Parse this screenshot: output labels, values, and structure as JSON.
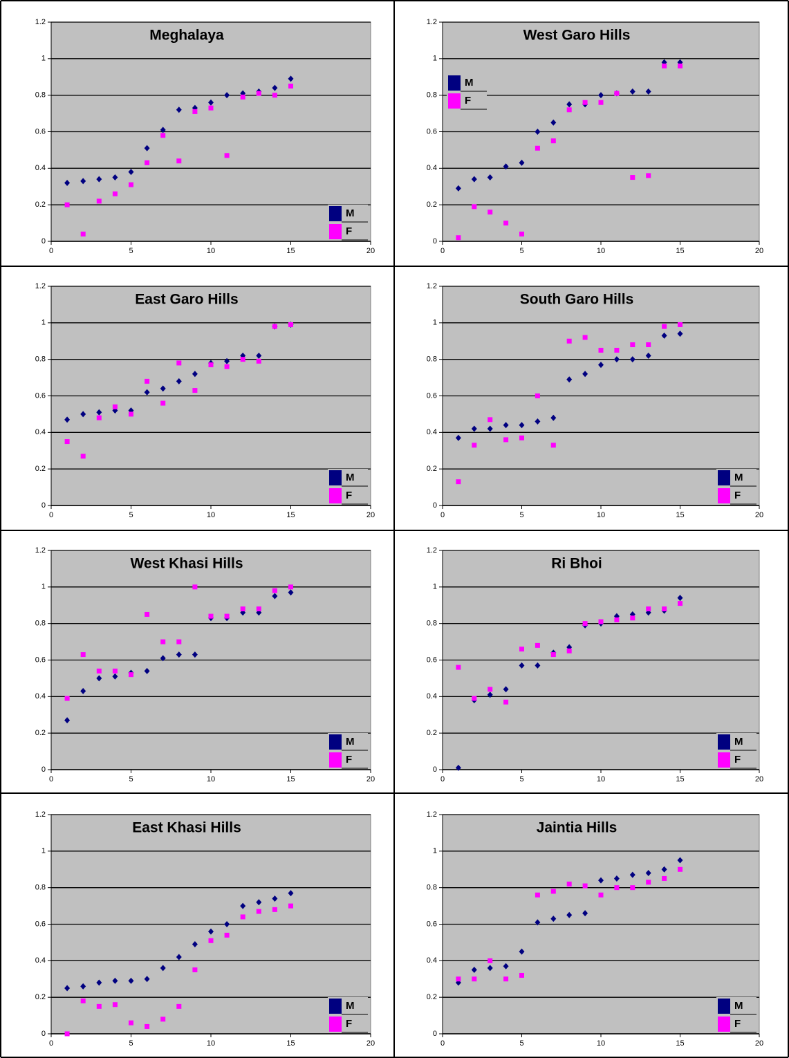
{
  "chart_data": [
    {
      "type": "scatter",
      "title": "Meghalaya",
      "x": [
        1,
        2,
        3,
        4,
        5,
        6,
        7,
        8,
        9,
        10,
        11,
        12,
        13,
        14,
        15
      ],
      "xlim": [
        0,
        20
      ],
      "xticks": [
        0,
        5,
        10,
        15,
        20
      ],
      "ylim": [
        0,
        1.2
      ],
      "yticks": [
        0,
        0.2,
        0.4,
        0.6,
        0.8,
        1,
        1.2
      ],
      "grid": true,
      "legend": "lower right",
      "series": [
        {
          "name": "M",
          "color": "#000080",
          "marker": "diamond",
          "values": [
            0.32,
            0.33,
            0.34,
            0.35,
            0.38,
            0.51,
            0.61,
            0.72,
            0.73,
            0.76,
            0.8,
            0.81,
            0.82,
            0.84,
            0.89
          ]
        },
        {
          "name": "F",
          "color": "#ff00ff",
          "marker": "square",
          "values": [
            0.2,
            0.04,
            0.22,
            0.26,
            0.31,
            0.43,
            0.58,
            0.44,
            0.71,
            0.73,
            0.47,
            0.79,
            0.81,
            0.8,
            0.85
          ]
        }
      ]
    },
    {
      "type": "scatter",
      "title": "West Garo Hills",
      "x": [
        1,
        2,
        3,
        4,
        5,
        6,
        7,
        8,
        9,
        10,
        11,
        12,
        13,
        14,
        15
      ],
      "xlim": [
        0,
        20
      ],
      "xticks": [
        0,
        5,
        10,
        15,
        20
      ],
      "ylim": [
        0,
        1.2
      ],
      "yticks": [
        0,
        0.2,
        0.4,
        0.6,
        0.8,
        1,
        1.2
      ],
      "grid": true,
      "legend": "upper left",
      "series": [
        {
          "name": "M",
          "color": "#000080",
          "marker": "diamond",
          "values": [
            0.29,
            0.34,
            0.35,
            0.41,
            0.43,
            0.6,
            0.65,
            0.75,
            0.75,
            0.8,
            0.81,
            0.82,
            0.82,
            0.98,
            0.98
          ]
        },
        {
          "name": "F",
          "color": "#ff00ff",
          "marker": "square",
          "values": [
            0.02,
            0.19,
            0.16,
            0.1,
            0.04,
            0.51,
            0.55,
            0.72,
            0.76,
            0.76,
            0.81,
            0.35,
            0.36,
            0.96,
            0.96
          ]
        }
      ]
    },
    {
      "type": "scatter",
      "title": "East Garo Hills",
      "x": [
        1,
        2,
        3,
        4,
        5,
        6,
        7,
        8,
        9,
        10,
        11,
        12,
        13,
        14,
        15
      ],
      "xlim": [
        0,
        20
      ],
      "xticks": [
        0,
        5,
        10,
        15,
        20
      ],
      "ylim": [
        0,
        1.2
      ],
      "yticks": [
        0,
        0.2,
        0.4,
        0.6,
        0.8,
        1,
        1.2
      ],
      "grid": true,
      "legend": "lower right",
      "series": [
        {
          "name": "M",
          "color": "#000080",
          "marker": "diamond",
          "values": [
            0.47,
            0.5,
            0.51,
            0.52,
            0.52,
            0.62,
            0.64,
            0.68,
            0.72,
            0.78,
            0.79,
            0.82,
            0.82,
            0.98,
            0.99
          ]
        },
        {
          "name": "F",
          "color": "#ff00ff",
          "marker": "square",
          "values": [
            0.35,
            0.27,
            0.48,
            0.54,
            0.5,
            0.68,
            0.56,
            0.78,
            0.63,
            0.77,
            0.76,
            0.8,
            0.79,
            0.98,
            0.99
          ]
        }
      ]
    },
    {
      "type": "scatter",
      "title": "South Garo Hills",
      "x": [
        1,
        2,
        3,
        4,
        5,
        6,
        7,
        8,
        9,
        10,
        11,
        12,
        13,
        14,
        15
      ],
      "xlim": [
        0,
        20
      ],
      "xticks": [
        0,
        5,
        10,
        15,
        20
      ],
      "ylim": [
        0,
        1.2
      ],
      "yticks": [
        0,
        0.2,
        0.4,
        0.6,
        0.8,
        1,
        1.2
      ],
      "grid": true,
      "legend": "lower right",
      "series": [
        {
          "name": "M",
          "color": "#000080",
          "marker": "diamond",
          "values": [
            0.37,
            0.42,
            0.42,
            0.44,
            0.44,
            0.46,
            0.48,
            0.69,
            0.72,
            0.77,
            0.8,
            0.8,
            0.82,
            0.93,
            0.94
          ]
        },
        {
          "name": "F",
          "color": "#ff00ff",
          "marker": "square",
          "values": [
            0.13,
            0.33,
            0.47,
            0.36,
            0.37,
            0.6,
            0.33,
            0.9,
            0.92,
            0.85,
            0.85,
            0.88,
            0.88,
            0.98,
            0.99
          ]
        }
      ]
    },
    {
      "type": "scatter",
      "title": "West Khasi Hills",
      "x": [
        1,
        2,
        3,
        4,
        5,
        6,
        7,
        8,
        9,
        10,
        11,
        12,
        13,
        14,
        15
      ],
      "xlim": [
        0,
        20
      ],
      "xticks": [
        0,
        5,
        10,
        15,
        20
      ],
      "ylim": [
        0,
        1.2
      ],
      "yticks": [
        0,
        0.2,
        0.4,
        0.6,
        0.8,
        1,
        1.2
      ],
      "grid": true,
      "legend": "lower right",
      "series": [
        {
          "name": "M",
          "color": "#000080",
          "marker": "diamond",
          "values": [
            0.27,
            0.43,
            0.5,
            0.51,
            0.53,
            0.54,
            0.61,
            0.63,
            0.63,
            0.83,
            0.83,
            0.86,
            0.86,
            0.95,
            0.97
          ]
        },
        {
          "name": "F",
          "color": "#ff00ff",
          "marker": "square",
          "values": [
            0.39,
            0.63,
            0.54,
            0.54,
            0.52,
            0.85,
            0.7,
            0.7,
            1.0,
            0.84,
            0.84,
            0.88,
            0.88,
            0.98,
            1.0
          ]
        }
      ]
    },
    {
      "type": "scatter",
      "title": "Ri Bhoi",
      "x": [
        1,
        2,
        3,
        4,
        5,
        6,
        7,
        8,
        9,
        10,
        11,
        12,
        13,
        14,
        15
      ],
      "xlim": [
        0,
        20
      ],
      "xticks": [
        0,
        5,
        10,
        15,
        20
      ],
      "ylim": [
        0,
        1.2
      ],
      "yticks": [
        0,
        0.2,
        0.4,
        0.6,
        0.8,
        1,
        1.2
      ],
      "grid": true,
      "legend": "lower right",
      "series": [
        {
          "name": "M",
          "color": "#000080",
          "marker": "diamond",
          "values": [
            0.01,
            0.38,
            0.41,
            0.44,
            0.57,
            0.57,
            0.64,
            0.67,
            0.79,
            0.8,
            0.84,
            0.85,
            0.86,
            0.87,
            0.94
          ]
        },
        {
          "name": "F",
          "color": "#ff00ff",
          "marker": "square",
          "values": [
            0.56,
            0.39,
            0.44,
            0.37,
            0.66,
            0.68,
            0.63,
            0.65,
            0.8,
            0.81,
            0.82,
            0.83,
            0.88,
            0.88,
            0.91
          ]
        }
      ]
    },
    {
      "type": "scatter",
      "title": "East Khasi Hills",
      "x": [
        1,
        2,
        3,
        4,
        5,
        6,
        7,
        8,
        9,
        10,
        11,
        12,
        13,
        14,
        15
      ],
      "xlim": [
        0,
        20
      ],
      "xticks": [
        0,
        5,
        10,
        15,
        20
      ],
      "ylim": [
        0,
        1.2
      ],
      "yticks": [
        0,
        0.2,
        0.4,
        0.6,
        0.8,
        1,
        1.2
      ],
      "grid": true,
      "legend": "lower right",
      "series": [
        {
          "name": "M",
          "color": "#000080",
          "marker": "diamond",
          "values": [
            0.25,
            0.26,
            0.28,
            0.29,
            0.29,
            0.3,
            0.36,
            0.42,
            0.49,
            0.56,
            0.6,
            0.7,
            0.72,
            0.74,
            0.77
          ]
        },
        {
          "name": "F",
          "color": "#ff00ff",
          "marker": "square",
          "values": [
            0.0,
            0.18,
            0.15,
            0.16,
            0.06,
            0.04,
            0.08,
            0.15,
            0.35,
            0.51,
            0.54,
            0.64,
            0.67,
            0.68,
            0.7
          ]
        }
      ]
    },
    {
      "type": "scatter",
      "title": "Jaintia Hills",
      "x": [
        1,
        2,
        3,
        4,
        5,
        6,
        7,
        8,
        9,
        10,
        11,
        12,
        13,
        14,
        15
      ],
      "xlim": [
        0,
        20
      ],
      "xticks": [
        0,
        5,
        10,
        15,
        20
      ],
      "ylim": [
        0,
        1.2
      ],
      "yticks": [
        0,
        0.2,
        0.4,
        0.6,
        0.8,
        1,
        1.2
      ],
      "grid": true,
      "legend": "lower right",
      "series": [
        {
          "name": "M",
          "color": "#000080",
          "marker": "diamond",
          "values": [
            0.28,
            0.35,
            0.36,
            0.37,
            0.45,
            0.61,
            0.63,
            0.65,
            0.66,
            0.84,
            0.85,
            0.87,
            0.88,
            0.9,
            0.95
          ]
        },
        {
          "name": "F",
          "color": "#ff00ff",
          "marker": "square",
          "values": [
            0.3,
            0.3,
            0.4,
            0.3,
            0.32,
            0.76,
            0.78,
            0.82,
            0.81,
            0.76,
            0.8,
            0.8,
            0.83,
            0.85,
            0.9
          ]
        }
      ]
    }
  ]
}
